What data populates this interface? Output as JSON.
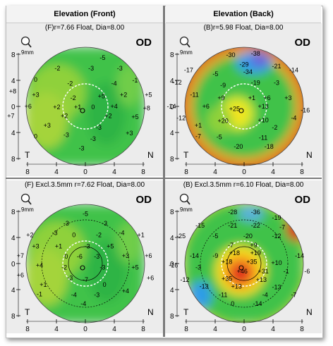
{
  "headers": {
    "front": "Elevation (Front)",
    "back": "Elevation (Back)"
  },
  "colors": {
    "green_ref": "#3fc24a",
    "lime": "#8fd13a",
    "yellow": "#f4e31b",
    "orange": "#f59a1c",
    "red": "#e0261f",
    "blue": "#2e9ce8",
    "violet": "#6e58d8"
  },
  "panels": [
    {
      "id": "front_float",
      "subtitle": "(F)r=7.66 Float, Dia=8.00",
      "eye": "OD",
      "zoom_label": "9mm",
      "left_label": "T",
      "right_label": "N",
      "scheme": "front",
      "has_dashed_zone": true,
      "has_outer_ring": false,
      "values": [
        {
          "t": "-5",
          "x": 0.45,
          "y": -1.27
        },
        {
          "t": "-2",
          "x": -0.73,
          "y": -1.0
        },
        {
          "t": "-3",
          "x": 0.15,
          "y": -1.0
        },
        {
          "t": "-3",
          "x": 0.9,
          "y": -1.0
        },
        {
          "t": "0",
          "x": -1.3,
          "y": -0.7
        },
        {
          "t": "-2",
          "x": -0.4,
          "y": -0.6
        },
        {
          "t": "-4",
          "x": 0.75,
          "y": -0.6
        },
        {
          "t": "-1",
          "x": 1.3,
          "y": -0.68
        },
        {
          "t": "+8",
          "x": -1.9,
          "y": -0.4
        },
        {
          "t": "+3",
          "x": -1.3,
          "y": -0.3
        },
        {
          "t": "-2",
          "x": -0.32,
          "y": -0.22
        },
        {
          "t": "+5",
          "x": 0.42,
          "y": -0.27
        },
        {
          "t": "+2",
          "x": 1.0,
          "y": -0.3
        },
        {
          "t": "+5",
          "x": 1.65,
          "y": -0.3
        },
        {
          "t": "+6",
          "x": -1.5,
          "y": 0.0
        },
        {
          "t": "+2",
          "x": -0.75,
          "y": 0.02
        },
        {
          "t": "+1",
          "x": -0.2,
          "y": 0.02
        },
        {
          "t": "0",
          "x": 0.2,
          "y": 0.02
        },
        {
          "t": "+4",
          "x": 0.75,
          "y": 0.0
        },
        {
          "t": "+8",
          "x": 1.6,
          "y": 0.05
        },
        {
          "t": "+7",
          "x": -1.95,
          "y": 0.25
        },
        {
          "t": "+2",
          "x": -0.55,
          "y": 0.25
        },
        {
          "t": "+2",
          "x": 0.6,
          "y": 0.25
        },
        {
          "t": "+5",
          "x": 1.3,
          "y": 0.28
        },
        {
          "t": "+3",
          "x": -1.0,
          "y": 0.5
        },
        {
          "t": "-3",
          "x": 0.35,
          "y": 0.55
        },
        {
          "t": "+3",
          "x": 1.15,
          "y": 0.7
        },
        {
          "t": "0",
          "x": -1.3,
          "y": 0.78
        },
        {
          "t": "-3",
          "x": -0.5,
          "y": 0.75
        },
        {
          "t": "-3",
          "x": 0.2,
          "y": 0.85
        },
        {
          "t": "-3",
          "x": -0.1,
          "y": 1.1
        }
      ],
      "x_ticks": [
        "8",
        "4",
        "0",
        "4",
        "8"
      ],
      "y_ticks": [
        "8",
        "4",
        "0",
        "4",
        "8"
      ]
    },
    {
      "id": "back_float",
      "subtitle": "(B)r=5.98 Float, Dia=8.00",
      "eye": "OD",
      "zoom_label": "9mm",
      "left_label": "T",
      "right_label": "N",
      "scheme": "back",
      "has_dashed_zone": true,
      "has_outer_ring": false,
      "values": [
        {
          "t": "-30",
          "x": -0.35,
          "y": -1.35
        },
        {
          "t": "-38",
          "x": 0.3,
          "y": -1.38
        },
        {
          "t": "-29",
          "x": 0.0,
          "y": -1.1
        },
        {
          "t": "-21",
          "x": 0.85,
          "y": -1.05
        },
        {
          "t": "-17",
          "x": -1.45,
          "y": -0.95
        },
        {
          "t": "-5",
          "x": -0.75,
          "y": -0.85
        },
        {
          "t": "-34",
          "x": 0.1,
          "y": -0.9
        },
        {
          "t": "-14",
          "x": 1.3,
          "y": -0.95
        },
        {
          "t": "-12",
          "x": -1.75,
          "y": -0.63
        },
        {
          "t": "-9",
          "x": -0.55,
          "y": -0.55
        },
        {
          "t": "-19",
          "x": 0.3,
          "y": -0.62
        },
        {
          "t": "-3",
          "x": 0.85,
          "y": -0.62
        },
        {
          "t": "-11",
          "x": -1.3,
          "y": -0.3
        },
        {
          "t": "+9",
          "x": -0.6,
          "y": -0.22
        },
        {
          "t": "+1",
          "x": 0.2,
          "y": -0.22
        },
        {
          "t": "+6",
          "x": 0.6,
          "y": -0.22
        },
        {
          "t": "+3",
          "x": 1.15,
          "y": -0.22
        },
        {
          "t": "-14",
          "x": -1.9,
          "y": 0.0
        },
        {
          "t": "+6",
          "x": -1.0,
          "y": 0.0
        },
        {
          "t": "+25",
          "x": -0.25,
          "y": 0.06
        },
        {
          "t": "+13",
          "x": 0.5,
          "y": 0.0
        },
        {
          "t": "-16",
          "x": 1.6,
          "y": 0.1
        },
        {
          "t": "-4",
          "x": 1.3,
          "y": 0.3
        },
        {
          "t": "-12",
          "x": -1.65,
          "y": 0.3
        },
        {
          "t": "+20",
          "x": -0.55,
          "y": 0.38
        },
        {
          "t": "+10",
          "x": 0.5,
          "y": 0.36
        },
        {
          "t": "+1",
          "x": -1.2,
          "y": 0.5
        },
        {
          "t": "-2",
          "x": 0.8,
          "y": 0.55
        },
        {
          "t": "-7",
          "x": -1.2,
          "y": 0.78
        },
        {
          "t": "-5",
          "x": -0.65,
          "y": 0.8
        },
        {
          "t": "-11",
          "x": 0.5,
          "y": 0.82
        },
        {
          "t": "-20",
          "x": -0.15,
          "y": 1.05
        },
        {
          "t": "-18",
          "x": 0.65,
          "y": 1.05
        }
      ],
      "x_ticks": [
        "8",
        "4",
        "0",
        "4",
        "8"
      ],
      "y_ticks": [
        "8",
        "4",
        "0",
        "4",
        "8"
      ]
    },
    {
      "id": "front_excl",
      "subtitle": "(F) Excl.3.5mm r=7.62 Float, Dia=8.00",
      "eye": "OD",
      "zoom_label": "9mm",
      "left_label": "T",
      "right_label": "N",
      "scheme": "front",
      "has_dashed_zone": true,
      "has_outer_ring": true,
      "values": [
        {
          "t": "-5",
          "x": 0.0,
          "y": -1.3
        },
        {
          "t": "-3",
          "x": -0.5,
          "y": -1.05
        },
        {
          "t": "-3",
          "x": 0.5,
          "y": -1.05
        },
        {
          "t": "-3",
          "x": -0.8,
          "y": -0.8
        },
        {
          "t": "+2",
          "x": -1.45,
          "y": -0.75
        },
        {
          "t": "0",
          "x": -0.3,
          "y": -0.75
        },
        {
          "t": "-2",
          "x": 0.35,
          "y": -0.75
        },
        {
          "t": "-4",
          "x": 0.95,
          "y": -0.8
        },
        {
          "t": "+1",
          "x": 1.45,
          "y": -0.75
        },
        {
          "t": "+3",
          "x": -1.3,
          "y": -0.45
        },
        {
          "t": "+1",
          "x": -0.7,
          "y": -0.45
        },
        {
          "t": "-3",
          "x": 0.05,
          "y": -0.45
        },
        {
          "t": "+5",
          "x": 0.65,
          "y": -0.45
        },
        {
          "t": "+7",
          "x": -1.7,
          "y": -0.2
        },
        {
          "t": "0",
          "x": -0.5,
          "y": -0.18
        },
        {
          "t": "-6",
          "x": -0.15,
          "y": -0.18
        },
        {
          "t": "-3",
          "x": 0.3,
          "y": -0.18
        },
        {
          "t": "+3",
          "x": 1.05,
          "y": -0.2
        },
        {
          "t": "+6",
          "x": 1.65,
          "y": -0.2
        },
        {
          "t": "+4",
          "x": -1.2,
          "y": 0.05
        },
        {
          "t": "-2",
          "x": -0.55,
          "y": 0.1
        },
        {
          "t": "-3",
          "x": 0.45,
          "y": 0.1
        },
        {
          "t": "+5",
          "x": 1.3,
          "y": 0.1
        },
        {
          "t": "+6",
          "x": -1.7,
          "y": 0.3
        },
        {
          "t": "-3",
          "x": -0.4,
          "y": 0.38
        },
        {
          "t": "-7",
          "x": 0.0,
          "y": 0.42
        },
        {
          "t": "+6",
          "x": 1.7,
          "y": 0.38
        },
        {
          "t": "+1",
          "x": -1.1,
          "y": 0.55
        },
        {
          "t": "0",
          "x": 0.5,
          "y": 0.55
        },
        {
          "t": "+4",
          "x": 1.05,
          "y": 0.72
        },
        {
          "t": "-1",
          "x": -1.2,
          "y": 0.8
        },
        {
          "t": "-4",
          "x": -0.3,
          "y": 0.82
        },
        {
          "t": "-3",
          "x": 0.3,
          "y": 0.82
        },
        {
          "t": "-4",
          "x": -0.05,
          "y": 1.05
        }
      ],
      "x_ticks": [
        "8",
        "4",
        "0",
        "4",
        "8"
      ],
      "y_ticks": [
        "8",
        "4",
        "0",
        "4",
        "8"
      ]
    },
    {
      "id": "back_excl",
      "subtitle": "(B) Excl.3.5mm r=6.10 Float, Dia=8.00",
      "eye": "OD",
      "zoom_label": "9mm",
      "left_label": "T",
      "right_label": "N",
      "scheme": "back_excl",
      "has_dashed_zone": true,
      "has_outer_ring": true,
      "values": [
        {
          "t": "-28",
          "x": -0.3,
          "y": -1.35
        },
        {
          "t": "-36",
          "x": 0.3,
          "y": -1.35
        },
        {
          "t": "-19",
          "x": 0.85,
          "y": -1.2
        },
        {
          "t": "-15",
          "x": -1.15,
          "y": -1.0
        },
        {
          "t": "-21",
          "x": -0.3,
          "y": -1.0
        },
        {
          "t": "-22",
          "x": 0.3,
          "y": -1.0
        },
        {
          "t": "-7",
          "x": 1.0,
          "y": -0.95
        },
        {
          "t": "-25",
          "x": -1.65,
          "y": -0.72
        },
        {
          "t": "-5",
          "x": -0.75,
          "y": -0.72
        },
        {
          "t": "-20",
          "x": 0.1,
          "y": -0.72
        },
        {
          "t": "-12",
          "x": 0.85,
          "y": -0.72
        },
        {
          "t": "-7",
          "x": -0.35,
          "y": -0.48
        },
        {
          "t": "+9",
          "x": 0.25,
          "y": -0.48
        },
        {
          "t": "+18",
          "x": -0.25,
          "y": -0.28
        },
        {
          "t": "+19",
          "x": 0.3,
          "y": -0.28
        },
        {
          "t": "-14",
          "x": -1.3,
          "y": -0.2
        },
        {
          "t": "-9",
          "x": -0.75,
          "y": -0.2
        },
        {
          "t": "-14",
          "x": 1.45,
          "y": -0.2
        },
        {
          "t": "+18",
          "x": -0.45,
          "y": -0.05
        },
        {
          "t": "+35",
          "x": 0.2,
          "y": -0.05
        },
        {
          "t": "+10",
          "x": 0.85,
          "y": -0.02
        },
        {
          "t": "-16",
          "x": -1.85,
          "y": 0.05
        },
        {
          "t": "-3",
          "x": -1.2,
          "y": 0.1
        },
        {
          "t": "+46",
          "x": -0.05,
          "y": 0.2
        },
        {
          "t": "+31",
          "x": 0.5,
          "y": 0.2
        },
        {
          "t": "-1",
          "x": 1.1,
          "y": 0.2
        },
        {
          "t": "-6",
          "x": 1.65,
          "y": 0.2
        },
        {
          "t": "+35",
          "x": -0.45,
          "y": 0.4
        },
        {
          "t": "+13",
          "x": 0.45,
          "y": 0.42
        },
        {
          "t": "-12",
          "x": -1.55,
          "y": 0.42
        },
        {
          "t": "-13",
          "x": -1.05,
          "y": 0.6
        },
        {
          "t": "+13",
          "x": -0.2,
          "y": 0.6
        },
        {
          "t": "-13",
          "x": 0.85,
          "y": 0.62
        },
        {
          "t": "-11",
          "x": -0.55,
          "y": 0.82
        },
        {
          "t": "-4",
          "x": 0.55,
          "y": 0.82
        },
        {
          "t": "-7",
          "x": 1.3,
          "y": 0.82
        },
        {
          "t": "0",
          "x": -0.3,
          "y": 1.05
        },
        {
          "t": "-14",
          "x": 0.35,
          "y": 1.05
        }
      ],
      "x_ticks": [
        "8",
        "4",
        "0",
        "4",
        "8"
      ],
      "y_ticks": [
        "8",
        "4",
        "0",
        "4",
        "8"
      ]
    }
  ]
}
